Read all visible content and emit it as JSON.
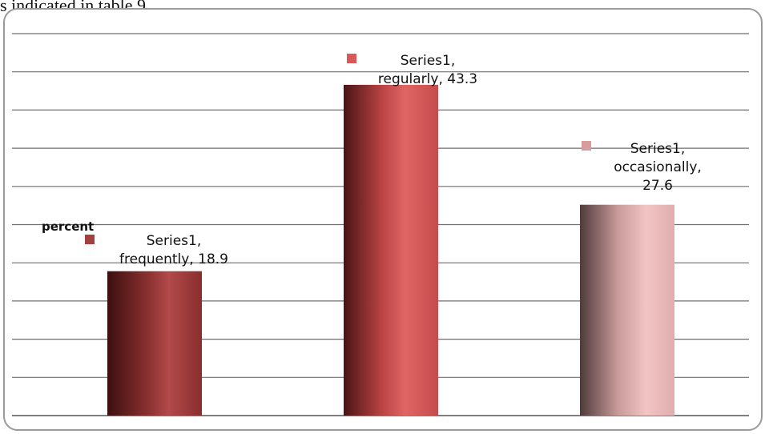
{
  "caption": "s indicated in table 9",
  "chart_data": {
    "type": "bar",
    "categories": [
      "frequently",
      "regularly",
      "occasionally"
    ],
    "series": [
      {
        "name": "percent",
        "values": [
          18.9,
          43.3,
          27.6
        ]
      }
    ],
    "data_labels": [
      [
        "Series1,",
        "frequently, 18.9"
      ],
      [
        "Series1,",
        "regularly, 43.3"
      ],
      [
        "Series1,",
        "occasionally,",
        "27.6"
      ]
    ],
    "bar_colors": [
      "#a0413f",
      "#d9585a",
      "#d79c9c"
    ],
    "ylim": [
      0,
      50
    ],
    "grid": true,
    "title": "",
    "xlabel": "",
    "ylabel": ""
  }
}
